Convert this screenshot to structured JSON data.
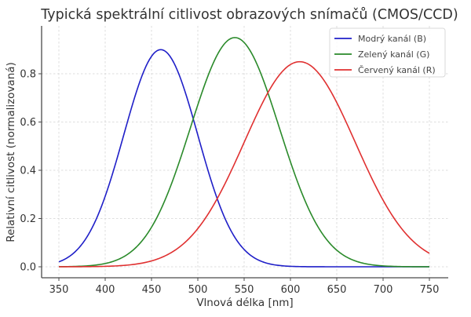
{
  "chart_data": {
    "type": "line",
    "title": "Typická spektrální citlivost obrazových snímačů (CMOS/CCD)",
    "xlabel": "Vlnová délka [nm]",
    "ylabel": "Relativní citlivost (normalizovaná)",
    "xlim": [
      350,
      750
    ],
    "ylim": [
      0.0,
      0.95
    ],
    "xticks": [
      350,
      400,
      450,
      500,
      550,
      600,
      650,
      700,
      750
    ],
    "xtick_labels": [
      "350",
      "400",
      "450",
      "500",
      "550",
      "600",
      "650",
      "700",
      "750"
    ],
    "yticks": [
      0.0,
      0.2,
      0.4,
      0.6,
      0.8
    ],
    "ytick_labels": [
      "0.0",
      "0.2",
      "0.4",
      "0.6",
      "0.8"
    ],
    "grid": true,
    "legend_position": "top-right",
    "x_range_sampled": [
      350,
      750
    ],
    "series": [
      {
        "name": "Modrý kanál (B)",
        "color": "#1f1fc8",
        "model": "gaussian",
        "peak_wavelength": 460,
        "peak_value": 0.9,
        "sigma": 40
      },
      {
        "name": "Zelený kanál (G)",
        "color": "#2a8a2a",
        "model": "gaussian",
        "peak_wavelength": 540,
        "peak_value": 0.95,
        "sigma": 48
      },
      {
        "name": "Červený kanál (R)",
        "color": "#e03030",
        "model": "gaussian",
        "peak_wavelength": 610,
        "peak_value": 0.85,
        "sigma": 60
      }
    ]
  }
}
